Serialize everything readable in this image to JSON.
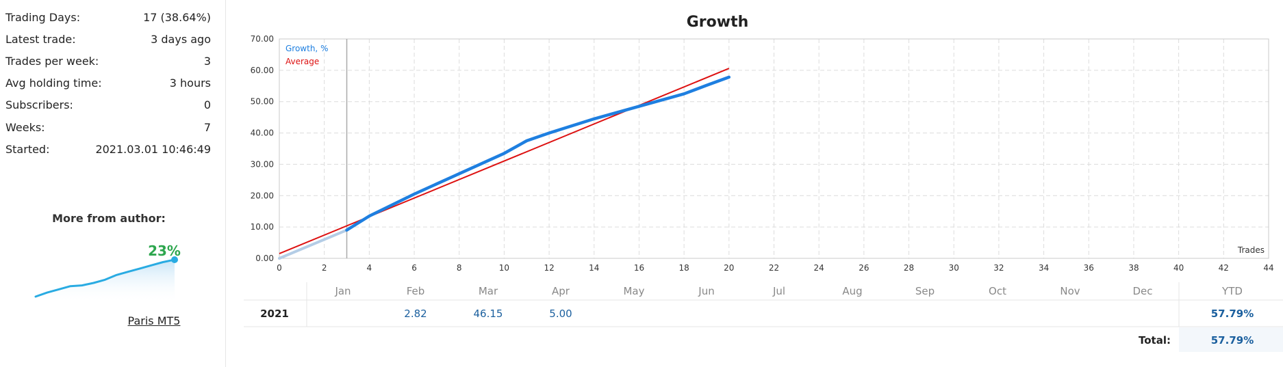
{
  "stats": [
    {
      "label": "Trading Days:",
      "value": "17 (38.64%)"
    },
    {
      "label": "Latest trade:",
      "value": "3 days ago"
    },
    {
      "label": "Trades per week:",
      "value": "3"
    },
    {
      "label": "Avg holding time:",
      "value": "3 hours"
    },
    {
      "label": "Subscribers:",
      "value": "0"
    },
    {
      "label": "Weeks:",
      "value": "7"
    },
    {
      "label": "Started:",
      "value": "2021.03.01 10:46:49"
    }
  ],
  "author": {
    "title": "More from author:",
    "percent": "23%",
    "signal_name": "Paris MT5",
    "sparkline": [
      0,
      2.5,
      4.5,
      6.5,
      7,
      8.5,
      10.5,
      13.5,
      15.5,
      17.5,
      19.5,
      21.5,
      23
    ],
    "color": "#29abe2"
  },
  "chart_data": {
    "type": "line",
    "title": "Growth",
    "xlabel": "Trades",
    "ylabel": "",
    "xlim": [
      0,
      44
    ],
    "ylim": [
      0,
      70
    ],
    "x_ticks": [
      0,
      2,
      4,
      6,
      8,
      10,
      12,
      14,
      16,
      18,
      20,
      22,
      24,
      26,
      28,
      30,
      32,
      34,
      36,
      38,
      40,
      42,
      44
    ],
    "y_ticks": [
      "0.00",
      "10.00",
      "20.00",
      "30.00",
      "40.00",
      "50.00",
      "60.00",
      "70.00"
    ],
    "grid": true,
    "legend_position": "top-left",
    "marker_x": 3,
    "series": [
      {
        "name": "Growth, %",
        "color": "#1e7fe0",
        "pre_color": "#b4cde6",
        "x": [
          0,
          3,
          4,
          6,
          8,
          10,
          11,
          12,
          14,
          16,
          18,
          19,
          20
        ],
        "values": [
          0,
          9,
          13.5,
          20.5,
          27,
          33.5,
          37.5,
          40,
          44.5,
          48.5,
          52.5,
          55.2,
          57.8
        ]
      },
      {
        "name": "Average",
        "color": "#dd1111",
        "x": [
          0,
          20
        ],
        "values": [
          1.5,
          60.6
        ]
      }
    ]
  },
  "table": {
    "months": [
      "Jan",
      "Feb",
      "Mar",
      "Apr",
      "May",
      "Jun",
      "Jul",
      "Aug",
      "Sep",
      "Oct",
      "Nov",
      "Dec"
    ],
    "ytd_label": "YTD",
    "year": "2021",
    "values": [
      "",
      "2.82",
      "46.15",
      "5.00",
      "",
      "",
      "",
      "",
      "",
      "",
      "",
      ""
    ],
    "ytd": "57.79%",
    "total_label": "Total:",
    "total": "57.79%"
  }
}
